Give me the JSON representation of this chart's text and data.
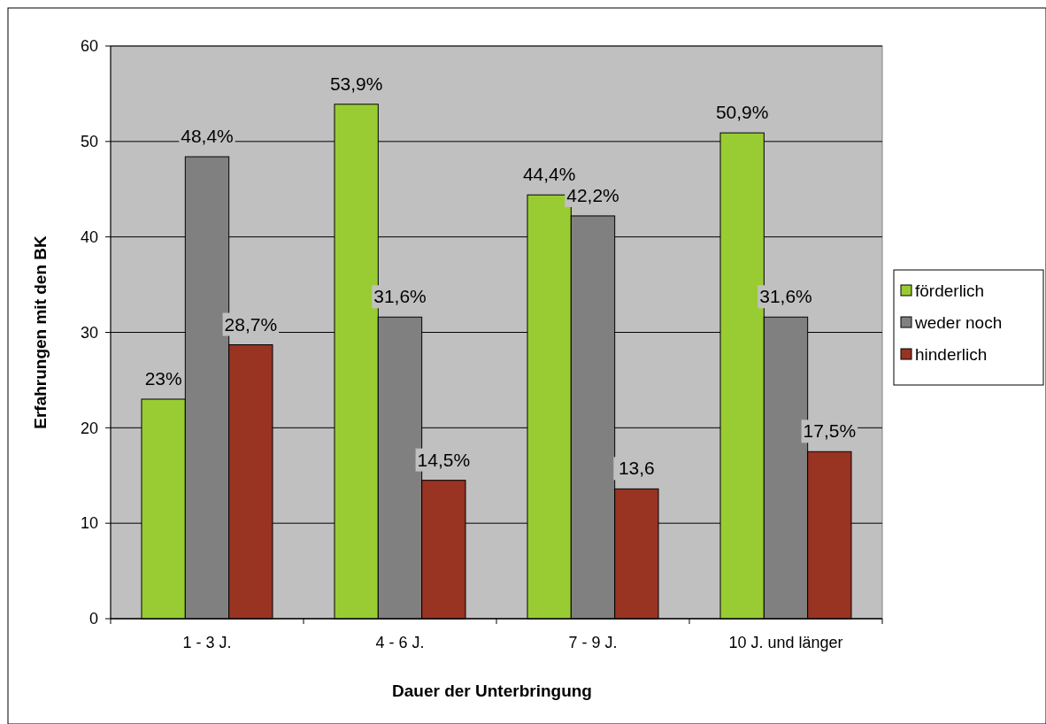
{
  "chart_data": {
    "type": "bar",
    "xlabel": "Dauer der Unterbringung",
    "ylabel": "Erfahrungen mit den BK",
    "categories": [
      "1 - 3 J.",
      "4 - 6 J.",
      "7 - 9 J.",
      "10 J. und länger"
    ],
    "series": [
      {
        "name": "förderlich",
        "color": "#99cc33",
        "values": [
          23,
          53.9,
          44.4,
          50.9
        ],
        "value_labels": [
          "23%",
          "53,9%",
          "44,4%",
          "50,9%"
        ]
      },
      {
        "name": "weder noch",
        "color": "#808080",
        "values": [
          48.4,
          31.6,
          42.2,
          31.6
        ],
        "value_labels": [
          "48,4%",
          "31,6%",
          "42,2%",
          "31,6%"
        ]
      },
      {
        "name": "hinderlich",
        "color": "#993322",
        "values": [
          28.7,
          14.5,
          13.6,
          17.5
        ],
        "value_labels": [
          "28,7%",
          "14,5%",
          "13,6",
          "17,5%"
        ]
      }
    ],
    "ylim": [
      0,
      60
    ],
    "yticks": [
      0,
      10,
      20,
      30,
      40,
      50,
      60
    ],
    "grid": "y",
    "legend": "right"
  }
}
